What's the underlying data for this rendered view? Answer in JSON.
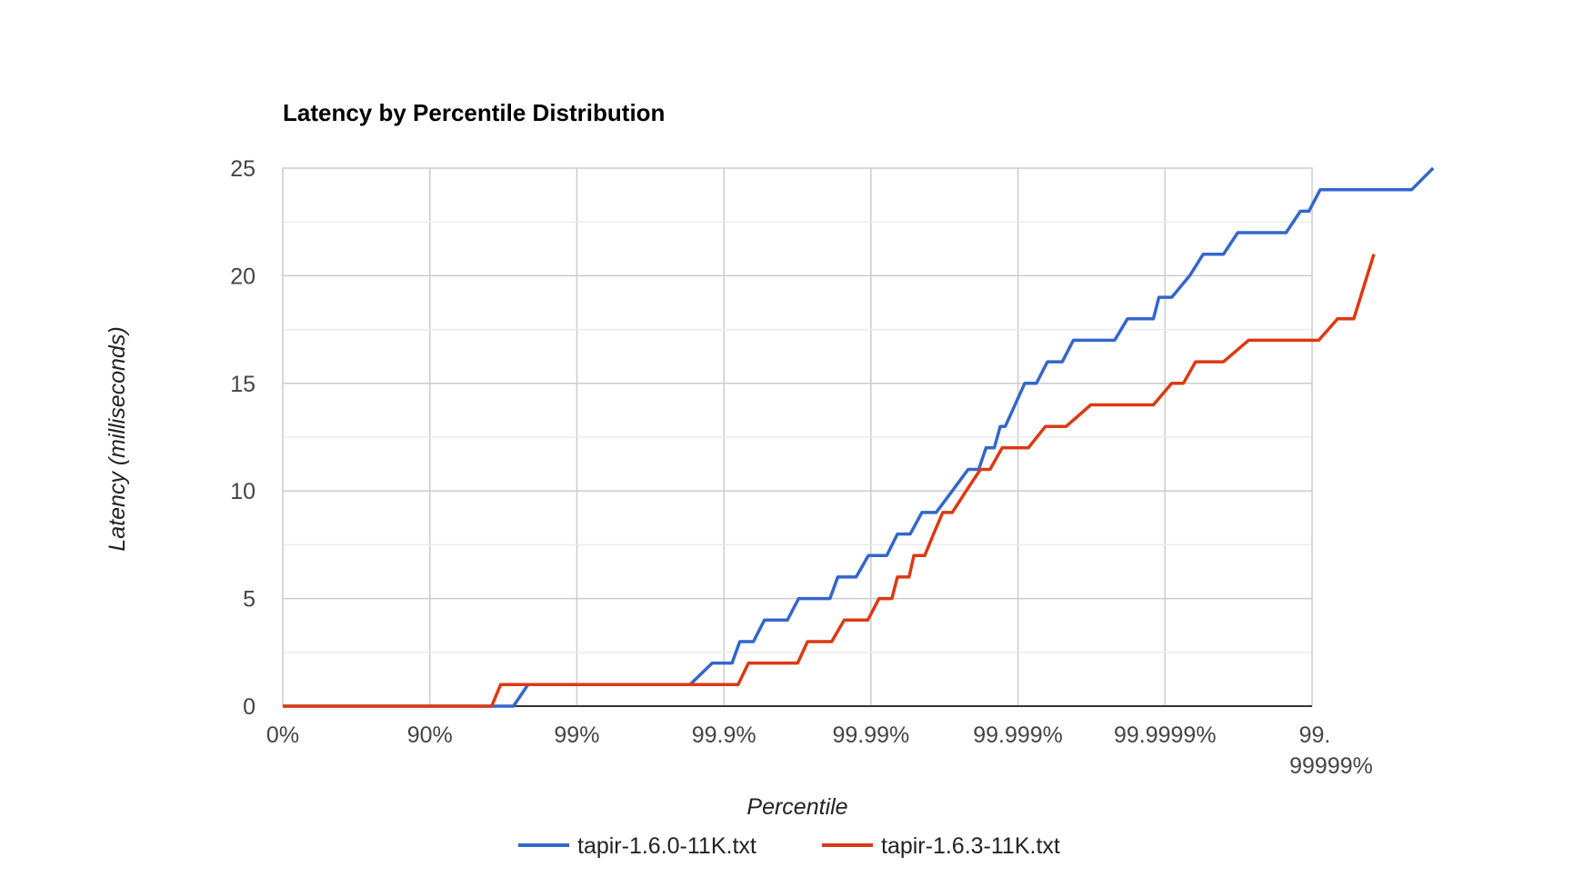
{
  "chart_data": {
    "type": "line",
    "title": "Latency by Percentile Distribution",
    "xlabel": "Percentile",
    "ylabel": "Latency (milliseconds)",
    "x_scale": "log-percentile (position = log10(1/(1 - percentile)))",
    "x_ticks": [
      "0%",
      "90%",
      "99%",
      "99.9%",
      "99.99%",
      "99.999%",
      "99.9999%",
      "99.99999%"
    ],
    "y_ticks": [
      "0",
      "5",
      "10",
      "15",
      "20",
      "25"
    ],
    "ylim": [
      0,
      25
    ],
    "grid": true,
    "legend_position": "bottom",
    "series": [
      {
        "name": "tapir-1.6.0-11K.txt",
        "color": "#3366cc",
        "points": [
          [
            "0%",
            0
          ],
          [
            "97.3%",
            0
          ],
          [
            "97.85%",
            1
          ],
          [
            "99.83%",
            1
          ],
          [
            "99.88%",
            2
          ],
          [
            "99.912%",
            2
          ],
          [
            "99.922%",
            3
          ],
          [
            "99.937%",
            3
          ],
          [
            "99.947%",
            4
          ],
          [
            "99.963%",
            4
          ],
          [
            "99.969%",
            5
          ],
          [
            "99.981%",
            5
          ],
          [
            "99.9832%",
            6
          ],
          [
            "99.9874%",
            6
          ],
          [
            "99.9896%",
            7
          ],
          [
            "99.9922%",
            7
          ],
          [
            "99.9934%",
            8
          ],
          [
            "99.9946%",
            8
          ],
          [
            "99.9955%",
            9
          ],
          [
            "99.9964%",
            9
          ],
          [
            "99.9972%",
            10
          ],
          [
            "99.99782%",
            11
          ],
          [
            "99.99815%",
            11
          ],
          [
            "99.99835%",
            12
          ],
          [
            "99.99855%",
            12
          ],
          [
            "99.99868%",
            13
          ],
          [
            "99.99878%",
            13
          ],
          [
            "99.9991%",
            15
          ],
          [
            "99.99925%",
            15
          ],
          [
            "99.99937%",
            16
          ],
          [
            "99.9995%",
            16
          ],
          [
            "99.99958%",
            17
          ],
          [
            "99.99978%",
            17
          ],
          [
            "99.99982%",
            18
          ],
          [
            "99.99988%",
            18
          ],
          [
            "99.99989%",
            19
          ],
          [
            "99.99991%",
            19
          ],
          [
            "99.999932%",
            20
          ],
          [
            "99.999945%",
            21
          ],
          [
            "99.99996%",
            21
          ],
          [
            "99.999968%",
            22
          ],
          [
            "99.999985%",
            22
          ],
          [
            "99.999988%",
            23
          ],
          [
            "99.9999895%",
            23
          ],
          [
            "99.9999912%",
            24
          ],
          [
            "99.9999979%",
            24
          ],
          [
            "99.9999985%",
            25
          ]
        ]
      },
      {
        "name": "tapir-1.6.3-11K.txt",
        "color": "#dc3912",
        "points": [
          [
            "0%",
            0
          ],
          [
            "96.2%",
            0
          ],
          [
            "96.7%",
            1
          ],
          [
            "99.92%",
            1
          ],
          [
            "99.932%",
            2
          ],
          [
            "99.9685%",
            2
          ],
          [
            "99.973%",
            3
          ],
          [
            "99.9815%",
            3
          ],
          [
            "99.9848%",
            4
          ],
          [
            "99.9895%",
            4
          ],
          [
            "99.9912%",
            5
          ],
          [
            "99.9928%",
            5
          ],
          [
            "99.9934%",
            6
          ],
          [
            "99.9945%",
            6
          ],
          [
            "99.9949%",
            7
          ],
          [
            "99.9957%",
            7
          ],
          [
            "99.99625%",
            8
          ],
          [
            "99.99675%",
            9
          ],
          [
            "99.9972%",
            9
          ],
          [
            "99.99775%",
            10
          ],
          [
            "99.9982%",
            11
          ],
          [
            "99.99845%",
            11
          ],
          [
            "99.99872%",
            12
          ],
          [
            "99.99915%",
            12
          ],
          [
            "99.99935%",
            13
          ],
          [
            "99.99953%",
            13
          ],
          [
            "99.99968%",
            14
          ],
          [
            "99.99988%",
            14
          ],
          [
            "99.99991%",
            15
          ],
          [
            "99.999925%",
            15
          ],
          [
            "99.999938%",
            16
          ],
          [
            "99.99996%",
            16
          ],
          [
            "99.999973%",
            17
          ],
          [
            "99.999991%",
            17
          ],
          [
            "99.9999933%",
            18
          ],
          [
            "99.9999948%",
            18
          ],
          [
            "99.9999962%",
            21
          ]
        ]
      }
    ]
  }
}
